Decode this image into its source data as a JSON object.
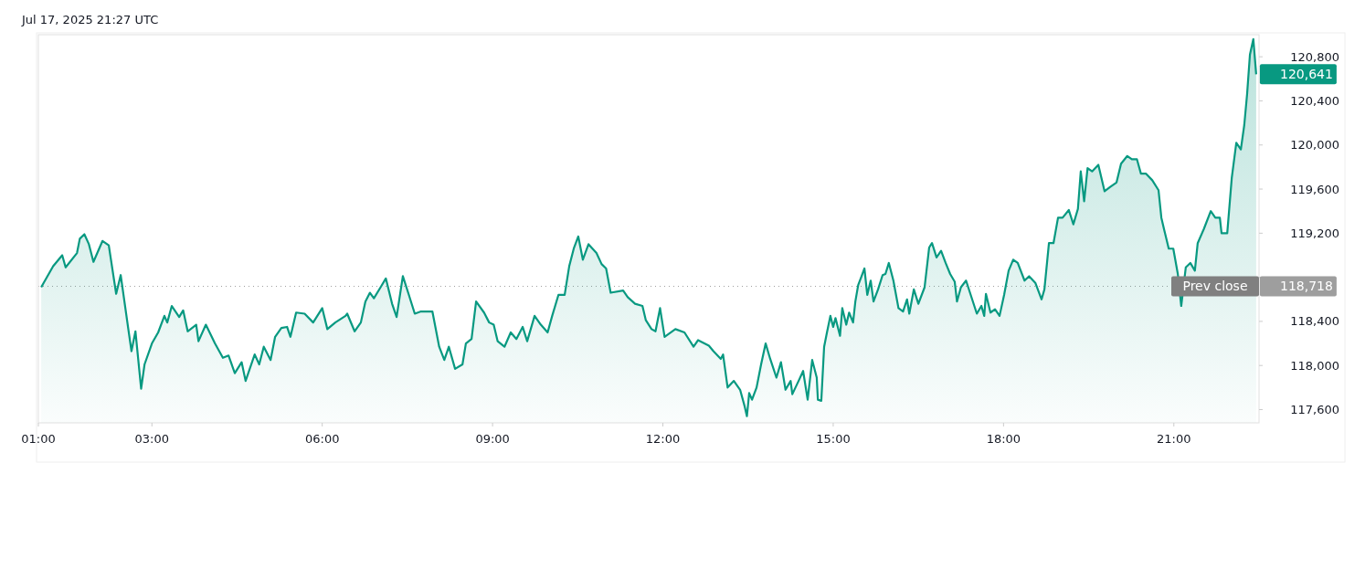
{
  "chart_data": {
    "type": "area",
    "title": "Jul 17, 2025 21:27 UTC",
    "xlim": [
      1.0,
      22.5
    ],
    "xticks": [
      {
        "value": 1,
        "label": "01:00"
      },
      {
        "value": 3,
        "label": "03:00"
      },
      {
        "value": 6,
        "label": "06:00"
      },
      {
        "value": 9,
        "label": "09:00"
      },
      {
        "value": 12,
        "label": "12:00"
      },
      {
        "value": 15,
        "label": "15:00"
      },
      {
        "value": 18,
        "label": "18:00"
      },
      {
        "value": 21,
        "label": "21:00"
      }
    ],
    "ylim": [
      117480,
      121000
    ],
    "yticks": [
      {
        "value": 117600,
        "label": "117,600"
      },
      {
        "value": 118000,
        "label": "118,000"
      },
      {
        "value": 118400,
        "label": "118,400"
      },
      {
        "value": 118800,
        "label": null
      },
      {
        "value": 119200,
        "label": "119,200"
      },
      {
        "value": 119600,
        "label": "119,600"
      },
      {
        "value": 120000,
        "label": "120,000"
      },
      {
        "value": 120400,
        "label": "120,400"
      },
      {
        "value": 120800,
        "label": "120,800"
      }
    ],
    "ref_lines": [
      {
        "axis": "y",
        "value": 118718,
        "label": "Prev close",
        "color": "#9e9e9e",
        "line_style": "dotted"
      }
    ],
    "annotations": [
      {
        "text": "120,641",
        "x": 22.45,
        "y": 120641
      },
      {
        "text": "118,718",
        "x": 22.45,
        "y": 118718
      }
    ],
    "series": [
      {
        "color": "#089981",
        "x": [
          1.05,
          1.26,
          1.42,
          1.48,
          1.68,
          1.73,
          1.81,
          1.89,
          1.97,
          2.13,
          2.24,
          2.37,
          2.45,
          2.59,
          2.64,
          2.71,
          2.81,
          2.87,
          3.0,
          3.11,
          3.22,
          3.27,
          3.35,
          3.48,
          3.55,
          3.63,
          3.78,
          3.82,
          3.95,
          4.11,
          4.25,
          4.35,
          4.46,
          4.58,
          4.65,
          4.81,
          4.89,
          4.97,
          5.09,
          5.17,
          5.28,
          5.38,
          5.44,
          5.54,
          5.69,
          5.84,
          6.0,
          6.09,
          6.23,
          6.41,
          6.44,
          6.57,
          6.68,
          6.76,
          6.84,
          6.91,
          7.04,
          7.12,
          7.23,
          7.31,
          7.42,
          7.52,
          7.63,
          7.74,
          7.94,
          8.06,
          8.15,
          8.23,
          8.34,
          8.47,
          8.53,
          8.63,
          8.71,
          8.85,
          8.94,
          9.02,
          9.09,
          9.21,
          9.32,
          9.42,
          9.53,
          9.61,
          9.74,
          9.85,
          9.97,
          10.05,
          10.16,
          10.27,
          10.35,
          10.43,
          10.51,
          10.59,
          10.69,
          10.83,
          10.92,
          11.0,
          11.08,
          11.3,
          11.38,
          11.51,
          11.64,
          11.7,
          11.8,
          11.87,
          11.95,
          12.03,
          12.22,
          12.38,
          12.54,
          12.62,
          12.81,
          12.89,
          13.02,
          13.06,
          13.14,
          13.25,
          13.36,
          13.44,
          13.48,
          13.52,
          13.57,
          13.65,
          13.73,
          13.81,
          13.89,
          14.0,
          14.08,
          14.16,
          14.25,
          14.28,
          14.39,
          14.47,
          14.55,
          14.63,
          14.71,
          14.73,
          14.79,
          14.84,
          14.89,
          14.95,
          15.0,
          15.04,
          15.12,
          15.16,
          15.23,
          15.28,
          15.35,
          15.39,
          15.44,
          15.5,
          15.55,
          15.6,
          15.66,
          15.71,
          15.79,
          15.87,
          15.92,
          15.98,
          16.06,
          16.15,
          16.23,
          16.3,
          16.34,
          16.42,
          16.5,
          16.61,
          16.69,
          16.74,
          16.82,
          16.9,
          16.98,
          17.06,
          17.14,
          17.18,
          17.25,
          17.34,
          17.53,
          17.61,
          17.66,
          17.69,
          17.77,
          17.85,
          17.93,
          18.01,
          18.09,
          18.17,
          18.25,
          18.37,
          18.45,
          18.56,
          18.67,
          18.72,
          18.8,
          18.88,
          18.96,
          19.04,
          19.15,
          19.23,
          19.31,
          19.36,
          19.42,
          19.48,
          19.56,
          19.67,
          19.78,
          19.88,
          19.99,
          20.07,
          20.18,
          20.26,
          20.35,
          20.42,
          20.51,
          20.62,
          20.73,
          20.78,
          20.83,
          20.91,
          20.99,
          21.07,
          21.13,
          21.21,
          21.29,
          21.37,
          21.42,
          21.53,
          21.65,
          21.73,
          21.81,
          21.84,
          21.94,
          22.02,
          22.1,
          22.18,
          22.24,
          22.29,
          22.34,
          22.4,
          22.45
        ],
        "values": [
          118710,
          118900,
          119000,
          118890,
          119020,
          119150,
          119190,
          119100,
          118940,
          119130,
          119090,
          118650,
          118820,
          118310,
          118130,
          118310,
          117790,
          118010,
          118200,
          118300,
          118450,
          118390,
          118540,
          118440,
          118500,
          118310,
          118370,
          118220,
          118370,
          118200,
          118070,
          118090,
          117930,
          118030,
          117860,
          118100,
          118010,
          118170,
          118050,
          118260,
          118340,
          118350,
          118260,
          118480,
          118470,
          118390,
          118520,
          118330,
          118390,
          118450,
          118470,
          118310,
          118390,
          118580,
          118660,
          118610,
          118720,
          118790,
          118560,
          118440,
          118810,
          118650,
          118470,
          118490,
          118490,
          118170,
          118050,
          118170,
          117970,
          118010,
          118200,
          118240,
          118580,
          118480,
          118390,
          118370,
          118220,
          118170,
          118300,
          118240,
          118350,
          118220,
          118450,
          118370,
          118300,
          118450,
          118640,
          118640,
          118900,
          119060,
          119170,
          118960,
          119100,
          119020,
          118920,
          118880,
          118660,
          118680,
          118620,
          118560,
          118540,
          118410,
          118330,
          118310,
          118520,
          118260,
          118330,
          118300,
          118170,
          118230,
          118180,
          118130,
          118060,
          118100,
          117800,
          117860,
          117780,
          117630,
          117540,
          117750,
          117690,
          117800,
          118010,
          118200,
          118060,
          117890,
          118030,
          117780,
          117860,
          117740,
          117860,
          117950,
          117690,
          118050,
          117890,
          117690,
          117680,
          118170,
          118300,
          118450,
          118350,
          118430,
          118270,
          118520,
          118370,
          118480,
          118390,
          118580,
          118730,
          118810,
          118880,
          118640,
          118770,
          118580,
          118690,
          118820,
          118830,
          118930,
          118770,
          118520,
          118490,
          118600,
          118470,
          118690,
          118560,
          118710,
          119070,
          119110,
          118980,
          119040,
          118930,
          118830,
          118760,
          118580,
          118710,
          118770,
          118470,
          118540,
          118450,
          118650,
          118480,
          118510,
          118450,
          118640,
          118860,
          118960,
          118930,
          118770,
          118810,
          118750,
          118600,
          118690,
          119110,
          119110,
          119340,
          119340,
          119410,
          119280,
          119420,
          119760,
          119490,
          119790,
          119760,
          119820,
          119580,
          119620,
          119660,
          119830,
          119900,
          119870,
          119870,
          119740,
          119740,
          119680,
          119590,
          119340,
          119230,
          119060,
          119060,
          118830,
          118540,
          118890,
          118930,
          118860,
          119110,
          119240,
          119400,
          119340,
          119340,
          119200,
          119200,
          119700,
          120020,
          119960,
          120180,
          120460,
          120820,
          120960,
          120641
        ]
      }
    ]
  }
}
